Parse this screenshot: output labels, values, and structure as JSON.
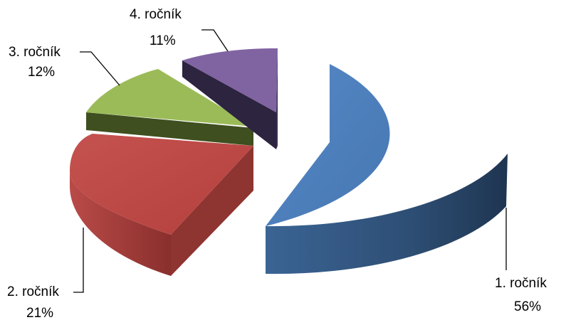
{
  "chart_data": {
    "type": "pie",
    "style": "3d-exploded",
    "title": "",
    "slices": [
      {
        "label": "1. ročník",
        "value": 56,
        "value_label": "56%",
        "color": "#4F81BD"
      },
      {
        "label": "2. ročník",
        "value": 21,
        "value_label": "21%",
        "color": "#C0504D"
      },
      {
        "label": "3. ročník",
        "value": 12,
        "value_label": "12%",
        "color": "#9BBB59"
      },
      {
        "label": "4. ročník",
        "value": 11,
        "value_label": "11%",
        "color": "#8064A2"
      }
    ],
    "legend": "none",
    "data_labels": "outside with leader lines"
  }
}
